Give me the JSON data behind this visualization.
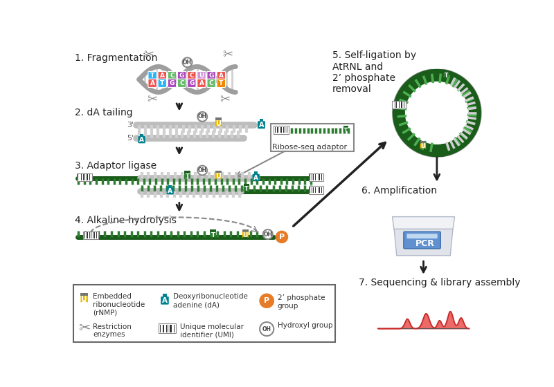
{
  "bg_color": "#ffffff",
  "green_dark": "#1a5c1a",
  "green_teeth": "#2e7d32",
  "yellow_gold": "#e6b800",
  "teal": "#00838f",
  "orange": "#e67c28",
  "gray_strand": "#9e9e9e",
  "gray_light": "#cccccc",
  "gray_medium": "#888888",
  "gray_tag": "#757575",
  "arrow_color": "#212121",
  "step_labels": [
    "1. Fragmentation",
    "2. dA tailing",
    "3. Adaptor ligase",
    "4. Alkaline hydrolysis",
    "5. Self-ligation by\nAtRNL and\n2’ phosphate\nremoval",
    "6. Amplification",
    "7. Sequencing & library assembly"
  ],
  "nuc_top_letters": [
    "T",
    "A",
    "C",
    "G",
    "C",
    "U",
    "G",
    "A"
  ],
  "nuc_top_colors": [
    "#29b6f6",
    "#ef5350",
    "#66bb6a",
    "#ab47bc",
    "#ef5350",
    "#ce93d8",
    "#ab47bc",
    "#ef5350"
  ],
  "nuc_bot_letters": [
    "A",
    "T",
    "G",
    "C",
    "G",
    "A",
    "C",
    "T"
  ],
  "nuc_bot_colors": [
    "#ef5350",
    "#29b6f6",
    "#ab47bc",
    "#66bb6a",
    "#ab47bc",
    "#ef5350",
    "#66bb6a",
    "#ef8a00"
  ]
}
